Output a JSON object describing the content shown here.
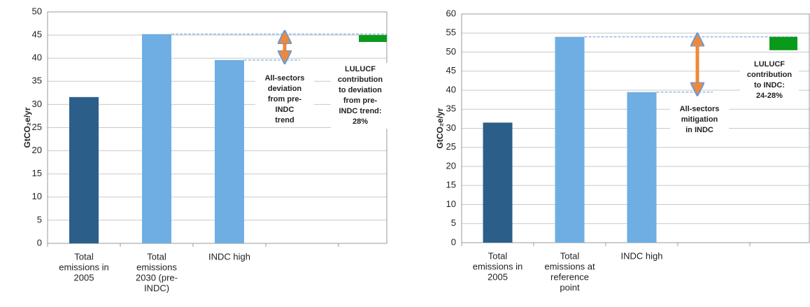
{
  "chart_data": [
    {
      "type": "bar",
      "ylabel": "GtCO₂e/yr",
      "categories": [
        [
          "Total",
          "emissions in",
          "2005"
        ],
        [
          "Total",
          "emissions",
          "2030 (pre-",
          "INDC)"
        ],
        [
          "INDC high"
        ],
        null,
        null
      ],
      "values": [
        31.6,
        45.2,
        39.6,
        null,
        null
      ],
      "colors": [
        "#2b5f8a",
        "#6eaee3",
        "#6eaee3",
        null,
        null
      ],
      "ylim": [
        0,
        50
      ],
      "yticks": [
        0,
        5,
        10,
        15,
        20,
        25,
        30,
        35,
        40,
        45,
        50
      ],
      "grid": true,
      "lulucf_range": [
        43.5,
        45
      ],
      "lulucf_color": "#0a9a1a",
      "annotations": [
        {
          "lines": [
            "All-sectors",
            "deviation",
            "from pre-",
            "INDC",
            "trend"
          ],
          "color": "#f0883a"
        },
        {
          "lines": [
            "LULUCF",
            "contribution",
            "to deviation",
            "from pre-",
            "INDC trend:",
            "28%"
          ],
          "color": "#1a8a1a"
        }
      ]
    },
    {
      "type": "bar",
      "ylabel": "GtCO₂e/yr",
      "categories": [
        [
          "Total",
          "emissions in",
          "2005"
        ],
        [
          "Total",
          "emissions at",
          "reference",
          "point"
        ],
        [
          "INDC high"
        ],
        null,
        null
      ],
      "values": [
        31.5,
        54,
        39.5,
        null,
        null
      ],
      "colors": [
        "#2b5f8a",
        "#6eaee3",
        "#6eaee3",
        null,
        null
      ],
      "ylim": [
        0,
        60
      ],
      "yticks": [
        0,
        5,
        10,
        15,
        20,
        25,
        30,
        35,
        40,
        45,
        50,
        55,
        60
      ],
      "grid": true,
      "lulucf_range": [
        50.5,
        54
      ],
      "lulucf_color": "#0a9a1a",
      "annotations": [
        {
          "lines": [
            "All-sectors",
            "mitigation",
            "in INDC"
          ],
          "color": "#f0883a"
        },
        {
          "lines": [
            "LULUCF",
            "contribution",
            "to INDC:",
            "24-28%"
          ],
          "color": "#1a8a1a"
        }
      ]
    }
  ]
}
